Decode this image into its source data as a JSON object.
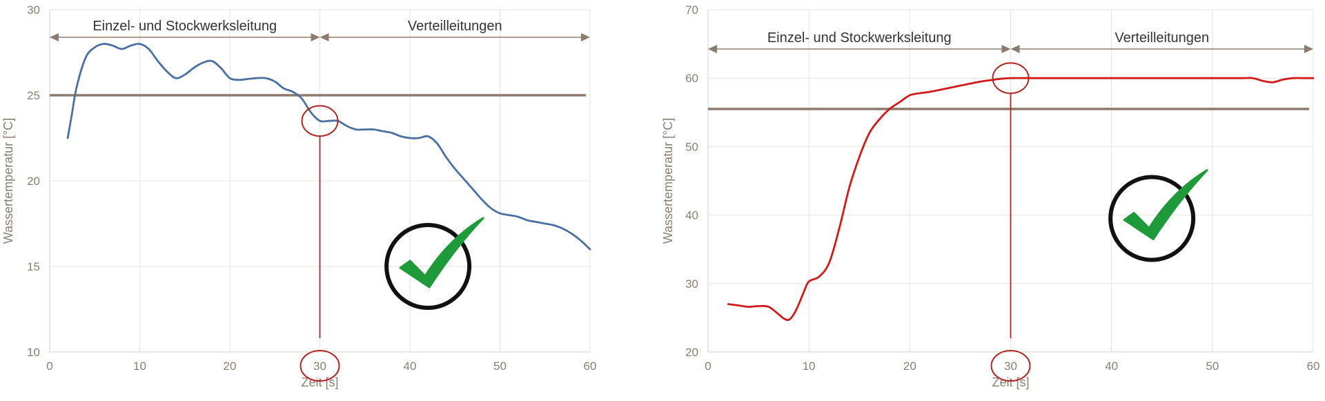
{
  "colors": {
    "series_left": "#4a6fa0",
    "series_right": "#d01a1a",
    "threshold": "#8c7b6d",
    "marker": "#b32424",
    "check_green": "#1f9a3a",
    "check_circle": "#111111",
    "grid": "#e6e3df",
    "tick_text": "#8a7f72",
    "arrow": "#8c7b6d"
  },
  "chart_data": [
    {
      "type": "line",
      "xlabel": "Zeit [s]",
      "ylabel": "Wassertemperatur [°C]",
      "xlim": [
        0,
        60
      ],
      "ylim": [
        10,
        30
      ],
      "xticks": [
        0,
        10,
        20,
        30,
        40,
        50,
        60
      ],
      "yticks": [
        10,
        15,
        20,
        25,
        30
      ],
      "grid": true,
      "sections": [
        {
          "label": "Einzel- und Stockwerksleitung",
          "from": 0,
          "to": 30
        },
        {
          "label": "Verteilleitungen",
          "from": 30,
          "to": 60
        }
      ],
      "threshold": 25,
      "marker": {
        "x": 30,
        "y": 23.5,
        "tick_circle_x": 30
      },
      "check": {
        "x": 42,
        "y": 15
      },
      "series": [
        {
          "x": [
            2,
            2.5,
            3,
            4,
            5,
            6,
            7,
            8,
            9,
            10,
            11,
            12,
            13,
            14,
            15,
            16,
            17,
            18,
            19,
            20,
            21,
            22,
            23,
            24,
            25,
            26,
            27,
            28,
            29,
            30,
            31,
            32,
            33,
            34,
            35,
            36,
            37,
            38,
            39,
            40,
            41,
            42,
            43,
            44,
            45,
            46,
            47,
            48,
            49,
            50,
            51,
            52,
            53,
            54,
            55,
            56,
            57,
            58,
            59,
            60
          ],
          "y": [
            22.5,
            24.0,
            25.5,
            27.2,
            27.8,
            28.0,
            27.9,
            27.7,
            27.9,
            28.0,
            27.7,
            27.0,
            26.4,
            26.0,
            26.2,
            26.6,
            26.9,
            27.0,
            26.6,
            26.0,
            25.9,
            25.95,
            26.0,
            26.0,
            25.8,
            25.4,
            25.2,
            24.8,
            24.0,
            23.5,
            23.5,
            23.5,
            23.2,
            23.0,
            23.0,
            23.0,
            22.9,
            22.8,
            22.6,
            22.5,
            22.5,
            22.6,
            22.2,
            21.4,
            20.7,
            20.1,
            19.5,
            18.9,
            18.4,
            18.1,
            18.0,
            17.9,
            17.7,
            17.6,
            17.5,
            17.4,
            17.2,
            16.9,
            16.5,
            16.0
          ]
        }
      ]
    },
    {
      "type": "line",
      "xlabel": "Zeit [s]",
      "ylabel": "Wassertemperatur [°C]",
      "xlim": [
        0,
        60
      ],
      "ylim": [
        20,
        70
      ],
      "xticks": [
        0,
        10,
        20,
        30,
        40,
        50,
        60
      ],
      "yticks": [
        20,
        30,
        40,
        50,
        60,
        70
      ],
      "grid": true,
      "sections": [
        {
          "label": "Einzel- und Stockwerksleitung",
          "from": 0,
          "to": 30
        },
        {
          "label": "Verteilleitungen",
          "from": 30,
          "to": 60
        }
      ],
      "threshold": 55.5,
      "marker": {
        "x": 30,
        "y": 60,
        "tick_circle_x": 30
      },
      "check": {
        "x": 44,
        "y": 39.5
      },
      "series": [
        {
          "x": [
            2,
            3,
            4,
            5,
            6,
            7,
            7.5,
            8,
            8.5,
            9,
            9.5,
            10,
            11,
            12,
            13,
            14,
            15,
            16,
            17,
            18,
            19,
            20,
            21,
            22,
            23,
            24,
            25,
            26,
            27,
            28,
            29,
            30,
            32,
            35,
            40,
            45,
            50,
            53,
            54,
            55,
            56,
            57,
            58,
            59,
            60
          ],
          "y": [
            27.0,
            26.8,
            26.6,
            26.7,
            26.6,
            25.5,
            24.9,
            24.7,
            25.5,
            27.0,
            28.8,
            30.3,
            31.0,
            33.0,
            38.0,
            44.0,
            48.5,
            52.0,
            54.0,
            55.5,
            56.5,
            57.5,
            57.8,
            58.0,
            58.3,
            58.6,
            58.9,
            59.2,
            59.5,
            59.7,
            59.9,
            60.0,
            60.0,
            60.0,
            60.0,
            60.0,
            60.0,
            60.0,
            60.0,
            59.6,
            59.4,
            59.8,
            60.0,
            60.0,
            60.0
          ]
        }
      ]
    }
  ]
}
